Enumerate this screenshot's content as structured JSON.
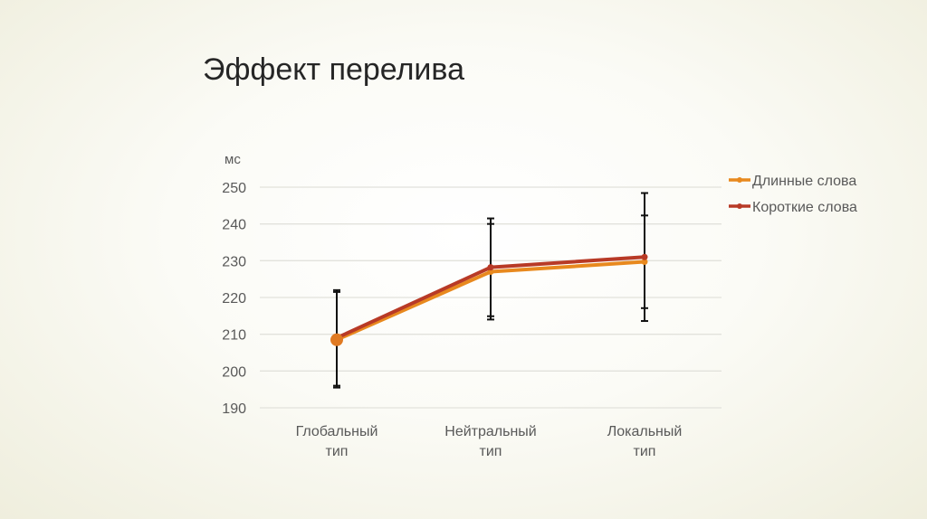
{
  "title": "Эффект перелива",
  "chart_data": {
    "type": "line",
    "ylabel": "мс",
    "ylim": [
      190,
      250
    ],
    "yticks": [
      190,
      200,
      210,
      220,
      230,
      240,
      250
    ],
    "categories": [
      "Глобальный тип",
      "Нейтральный тип",
      "Локальный тип"
    ],
    "category_lines": [
      [
        "Глобальный",
        "тип"
      ],
      [
        "Нейтральный",
        "тип"
      ],
      [
        "Локальный",
        "тип"
      ]
    ],
    "grid": true,
    "legend_position": "right",
    "series": [
      {
        "name": "Длинные слова",
        "color": "#e8891e",
        "values": [
          208.5,
          227,
          229.7
        ],
        "error": [
          13,
          13,
          12.6
        ]
      },
      {
        "name": "Короткие слова",
        "color": "#b83a26",
        "values": [
          209,
          228.2,
          231
        ],
        "error": [
          13,
          13.3,
          17.4
        ]
      }
    ]
  }
}
